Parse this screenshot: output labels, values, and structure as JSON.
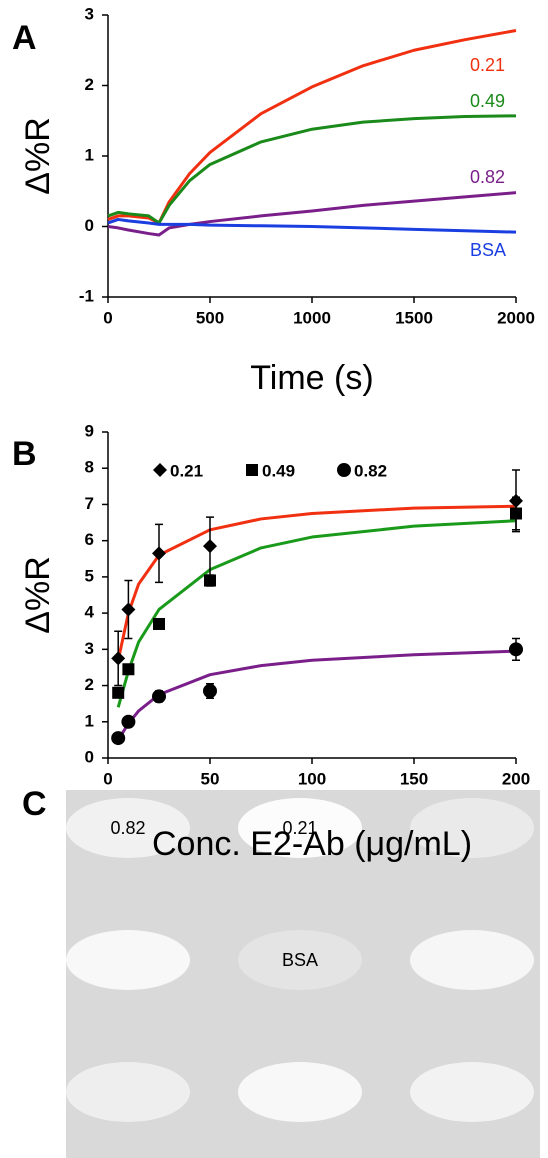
{
  "chart_data": [
    {
      "type": "line",
      "label": "A",
      "xlabel": "Time (s)",
      "ylabel": "Δ%R",
      "x": [
        0,
        50,
        100,
        200,
        250,
        300,
        400,
        500,
        750,
        1000,
        1250,
        1500,
        1750,
        2000
      ],
      "series": [
        {
          "name": "0.21",
          "color": "#f03010",
          "values": [
            0.1,
            0.15,
            0.15,
            0.12,
            0.05,
            0.35,
            0.75,
            1.05,
            1.6,
            1.98,
            2.28,
            2.5,
            2.65,
            2.78
          ]
        },
        {
          "name": "0.49",
          "color": "#1a8a1a",
          "values": [
            0.15,
            0.2,
            0.18,
            0.15,
            0.05,
            0.3,
            0.65,
            0.88,
            1.2,
            1.38,
            1.48,
            1.53,
            1.56,
            1.57
          ]
        },
        {
          "name": "0.82",
          "color": "#7a1f8a",
          "values": [
            0,
            -0.02,
            -0.05,
            -0.1,
            -0.12,
            -0.02,
            0.03,
            0.07,
            0.15,
            0.22,
            0.3,
            0.36,
            0.42,
            0.48
          ]
        },
        {
          "name": "BSA",
          "color": "#1a3ee0",
          "values": [
            0.05,
            0.1,
            0.08,
            0.05,
            0.03,
            0.03,
            0.03,
            0.02,
            0.01,
            0,
            -0.02,
            -0.04,
            -0.06,
            -0.08
          ]
        }
      ],
      "xlim": [
        0,
        2000
      ],
      "xticks": [
        0,
        500,
        1000,
        1500,
        2000
      ],
      "ylim": [
        -1,
        3
      ],
      "yticks": [
        -1,
        0,
        1,
        2,
        3
      ]
    },
    {
      "type": "scatter",
      "label": "B",
      "xlabel": "Conc. E2-Ab (μg/mL)",
      "ylabel": "Δ%R",
      "x": [
        5,
        10,
        25,
        50,
        200
      ],
      "series": [
        {
          "name": "0.21",
          "marker": "diamond",
          "color": "#000000",
          "values": [
            2.75,
            4.1,
            5.65,
            5.85,
            7.1
          ],
          "errors": [
            0.75,
            0.8,
            0.8,
            0.8,
            0.85
          ]
        },
        {
          "name": "0.49",
          "marker": "square",
          "color": "#000000",
          "values": [
            1.8,
            2.45,
            3.7,
            4.9,
            6.75
          ],
          "errors": [
            0.1,
            0.1,
            0.05,
            0.15,
            0.45
          ]
        },
        {
          "name": "0.82",
          "marker": "circle",
          "color": "#000000",
          "values": [
            0.55,
            1.0,
            1.7,
            1.85,
            3.0
          ],
          "errors": [
            0.1,
            0.1,
            0.15,
            0.2,
            0.3
          ]
        }
      ],
      "fits": [
        {
          "color": "#f03010",
          "x": [
            5,
            10,
            15,
            25,
            50,
            75,
            100,
            150,
            200
          ],
          "values": [
            2.7,
            4.0,
            4.8,
            5.6,
            6.3,
            6.6,
            6.75,
            6.9,
            6.95
          ]
        },
        {
          "color": "#1a9a1a",
          "x": [
            5,
            10,
            15,
            25,
            50,
            75,
            100,
            150,
            200
          ],
          "values": [
            1.4,
            2.4,
            3.2,
            4.1,
            5.2,
            5.8,
            6.1,
            6.4,
            6.55
          ]
        },
        {
          "color": "#7a1f8a",
          "x": [
            5,
            10,
            15,
            25,
            50,
            75,
            100,
            150,
            200
          ],
          "values": [
            0.5,
            0.95,
            1.3,
            1.75,
            2.3,
            2.55,
            2.7,
            2.85,
            2.95
          ]
        }
      ],
      "xlim": [
        0,
        200
      ],
      "xticks": [
        0,
        50,
        100,
        150,
        200
      ],
      "ylim": [
        0,
        9
      ],
      "yticks": [
        0,
        1,
        2,
        3,
        4,
        5,
        6,
        7,
        8,
        9
      ]
    }
  ],
  "panel_c": {
    "label": "C",
    "wells": [
      "0.82",
      "0.21",
      "BSA"
    ]
  }
}
